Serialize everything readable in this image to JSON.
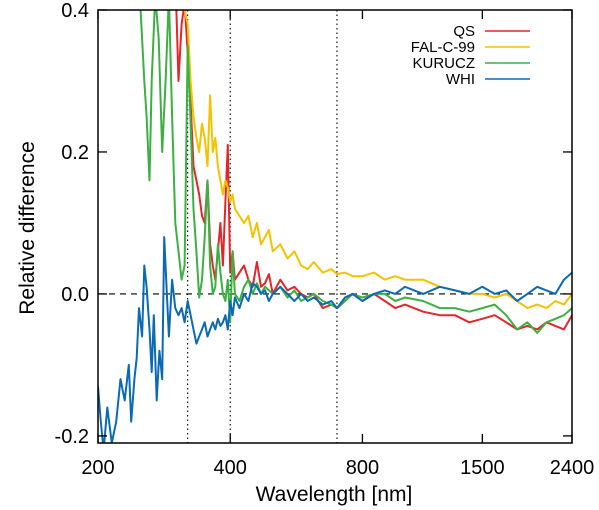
{
  "chart_data": {
    "type": "line",
    "xlabel": "Wavelength [nm]",
    "ylabel": "Relative difference",
    "x_scale": "log",
    "xlim": [
      200,
      2400
    ],
    "ylim": [
      -0.21,
      0.4
    ],
    "x_ticks": [
      {
        "value": 200,
        "label": "200"
      },
      {
        "value": 400,
        "label": "400"
      },
      {
        "value": 800,
        "label": "800"
      },
      {
        "value": 1500,
        "label": "1500"
      },
      {
        "value": 2400,
        "label": "2400"
      }
    ],
    "y_ticks": [
      {
        "value": 0.4,
        "label": "0.4"
      },
      {
        "value": 0.2,
        "label": "0.2"
      },
      {
        "value": 0.0,
        "label": "0.0"
      },
      {
        "value": -0.2,
        "label": "-0.2"
      }
    ],
    "reference_lines": {
      "horizontal_dashed": [
        0.0
      ],
      "vertical_dotted": [
        320,
        400,
        700
      ]
    },
    "legend_position": "top-right",
    "series": [
      {
        "name": "QS",
        "color": "#e3262a",
        "points": [
          [
            290,
            0.42
          ],
          [
            300,
            0.45
          ],
          [
            305,
            0.3
          ],
          [
            310,
            0.38
          ],
          [
            315,
            0.41
          ],
          [
            320,
            0.34
          ],
          [
            325,
            0.27
          ],
          [
            330,
            0.18
          ],
          [
            335,
            0.16
          ],
          [
            340,
            0.14
          ],
          [
            345,
            0.11
          ],
          [
            350,
            0.1
          ],
          [
            355,
            0.16
          ],
          [
            360,
            0.07
          ],
          [
            365,
            0.04
          ],
          [
            370,
            0.02
          ],
          [
            375,
            0.06
          ],
          [
            380,
            0.1
          ],
          [
            385,
            0.04
          ],
          [
            390,
            0.13
          ],
          [
            395,
            0.21
          ],
          [
            400,
            0.03
          ],
          [
            405,
            0.06
          ],
          [
            410,
            0.02
          ],
          [
            420,
            0.03
          ],
          [
            430,
            0.04
          ],
          [
            440,
            0.02
          ],
          [
            450,
            0.01
          ],
          [
            460,
            0.045
          ],
          [
            470,
            0.01
          ],
          [
            480,
            0.015
          ],
          [
            490,
            0.028
          ],
          [
            500,
            0.0
          ],
          [
            520,
            0.02
          ],
          [
            540,
            0.005
          ],
          [
            560,
            0.01
          ],
          [
            580,
            0.0
          ],
          [
            600,
            -0.005
          ],
          [
            620,
            0.0
          ],
          [
            650,
            -0.02
          ],
          [
            680,
            -0.015
          ],
          [
            700,
            -0.02
          ],
          [
            730,
            -0.01
          ],
          [
            760,
            0.0
          ],
          [
            800,
            -0.01
          ],
          [
            850,
            0.0
          ],
          [
            900,
            -0.01
          ],
          [
            950,
            -0.02
          ],
          [
            1000,
            -0.015
          ],
          [
            1100,
            -0.025
          ],
          [
            1200,
            -0.03
          ],
          [
            1300,
            -0.03
          ],
          [
            1400,
            -0.04
          ],
          [
            1500,
            -0.035
          ],
          [
            1600,
            -0.03
          ],
          [
            1700,
            -0.04
          ],
          [
            1800,
            -0.05
          ],
          [
            1900,
            -0.045
          ],
          [
            2000,
            -0.05
          ],
          [
            2100,
            -0.04
          ],
          [
            2200,
            -0.045
          ],
          [
            2300,
            -0.05
          ],
          [
            2400,
            -0.03
          ]
        ]
      },
      {
        "name": "FAL-C-99",
        "color": "#f5c200",
        "points": [
          [
            300,
            0.44
          ],
          [
            305,
            0.4
          ],
          [
            310,
            0.42
          ],
          [
            315,
            0.4
          ],
          [
            320,
            0.38
          ],
          [
            325,
            0.3
          ],
          [
            330,
            0.25
          ],
          [
            335,
            0.22
          ],
          [
            340,
            0.2
          ],
          [
            345,
            0.24
          ],
          [
            350,
            0.22
          ],
          [
            355,
            0.18
          ],
          [
            360,
            0.28
          ],
          [
            365,
            0.2
          ],
          [
            370,
            0.22
          ],
          [
            375,
            0.18
          ],
          [
            380,
            0.16
          ],
          [
            385,
            0.14
          ],
          [
            390,
            0.16
          ],
          [
            395,
            0.15
          ],
          [
            400,
            0.13
          ],
          [
            405,
            0.14
          ],
          [
            410,
            0.12
          ],
          [
            420,
            0.11
          ],
          [
            430,
            0.1
          ],
          [
            440,
            0.11
          ],
          [
            450,
            0.08
          ],
          [
            460,
            0.1
          ],
          [
            470,
            0.07
          ],
          [
            480,
            0.08
          ],
          [
            490,
            0.09
          ],
          [
            500,
            0.06
          ],
          [
            520,
            0.07
          ],
          [
            540,
            0.05
          ],
          [
            560,
            0.06
          ],
          [
            580,
            0.04
          ],
          [
            600,
            0.035
          ],
          [
            620,
            0.045
          ],
          [
            650,
            0.03
          ],
          [
            680,
            0.035
          ],
          [
            700,
            0.028
          ],
          [
            730,
            0.03
          ],
          [
            760,
            0.025
          ],
          [
            800,
            0.025
          ],
          [
            850,
            0.03
          ],
          [
            900,
            0.02
          ],
          [
            950,
            0.025
          ],
          [
            1000,
            0.02
          ],
          [
            1100,
            0.02
          ],
          [
            1200,
            0.01
          ],
          [
            1300,
            0.005
          ],
          [
            1400,
            0.0
          ],
          [
            1500,
            0.0
          ],
          [
            1600,
            -0.005
          ],
          [
            1700,
            0.0
          ],
          [
            1800,
            -0.01
          ],
          [
            1900,
            -0.02
          ],
          [
            2000,
            -0.015
          ],
          [
            2100,
            -0.02
          ],
          [
            2200,
            -0.01
          ],
          [
            2300,
            -0.015
          ],
          [
            2400,
            0.0
          ]
        ]
      },
      {
        "name": "KURUCZ",
        "color": "#3cb043",
        "points": [
          [
            250,
            0.4
          ],
          [
            255,
            0.3
          ],
          [
            258,
            0.25
          ],
          [
            262,
            0.16
          ],
          [
            265,
            0.3
          ],
          [
            270,
            0.42
          ],
          [
            275,
            0.36
          ],
          [
            280,
            0.2
          ],
          [
            285,
            0.3
          ],
          [
            290,
            0.42
          ],
          [
            295,
            0.25
          ],
          [
            300,
            0.1
          ],
          [
            305,
            0.06
          ],
          [
            310,
            0.02
          ],
          [
            315,
            0.04
          ],
          [
            320,
            0.35
          ],
          [
            325,
            0.24
          ],
          [
            330,
            0.12
          ],
          [
            335,
            0.06
          ],
          [
            340,
            -0.005
          ],
          [
            345,
            0.02
          ],
          [
            350,
            0.08
          ],
          [
            355,
            0.16
          ],
          [
            360,
            0.04
          ],
          [
            365,
            0.0
          ],
          [
            370,
            0.01
          ],
          [
            375,
            0.07
          ],
          [
            380,
            0.03
          ],
          [
            385,
            0.0
          ],
          [
            390,
            -0.01
          ],
          [
            395,
            0.02
          ],
          [
            400,
            -0.04
          ],
          [
            405,
            0.06
          ],
          [
            410,
            0.0
          ],
          [
            420,
            -0.01
          ],
          [
            430,
            0.01
          ],
          [
            440,
            0.02
          ],
          [
            450,
            0.0
          ],
          [
            460,
            0.015
          ],
          [
            470,
            0.0
          ],
          [
            480,
            0.01
          ],
          [
            500,
            0.0
          ],
          [
            520,
            0.01
          ],
          [
            540,
            -0.005
          ],
          [
            560,
            0.005
          ],
          [
            580,
            -0.01
          ],
          [
            600,
            -0.005
          ],
          [
            620,
            0.0
          ],
          [
            650,
            -0.01
          ],
          [
            680,
            -0.015
          ],
          [
            700,
            -0.02
          ],
          [
            730,
            -0.01
          ],
          [
            760,
            0.0
          ],
          [
            800,
            -0.005
          ],
          [
            850,
            0.0
          ],
          [
            900,
            0.0
          ],
          [
            950,
            -0.01
          ],
          [
            1000,
            -0.005
          ],
          [
            1100,
            -0.01
          ],
          [
            1200,
            -0.02
          ],
          [
            1300,
            -0.02
          ],
          [
            1400,
            -0.025
          ],
          [
            1500,
            -0.02
          ],
          [
            1600,
            -0.015
          ],
          [
            1700,
            -0.03
          ],
          [
            1800,
            -0.05
          ],
          [
            1900,
            -0.04
          ],
          [
            2000,
            -0.055
          ],
          [
            2100,
            -0.04
          ],
          [
            2200,
            -0.035
          ],
          [
            2300,
            -0.03
          ],
          [
            2400,
            -0.02
          ]
        ]
      },
      {
        "name": "WHI",
        "color": "#0a6ab4",
        "points": [
          [
            200,
            -0.13
          ],
          [
            203,
            -0.18
          ],
          [
            206,
            -0.22
          ],
          [
            210,
            -0.16
          ],
          [
            215,
            -0.21
          ],
          [
            220,
            -0.18
          ],
          [
            225,
            -0.12
          ],
          [
            230,
            -0.15
          ],
          [
            235,
            -0.1
          ],
          [
            238,
            -0.18
          ],
          [
            242,
            -0.12
          ],
          [
            245,
            -0.09
          ],
          [
            248,
            -0.02
          ],
          [
            252,
            -0.06
          ],
          [
            255,
            0.04
          ],
          [
            258,
            0.01
          ],
          [
            262,
            -0.05
          ],
          [
            265,
            -0.11
          ],
          [
            268,
            -0.03
          ],
          [
            272,
            -0.15
          ],
          [
            276,
            -0.08
          ],
          [
            280,
            -0.12
          ],
          [
            283,
            0.08
          ],
          [
            286,
            0.02
          ],
          [
            290,
            -0.06
          ],
          [
            295,
            0.02
          ],
          [
            300,
            -0.02
          ],
          [
            305,
            -0.03
          ],
          [
            310,
            -0.02
          ],
          [
            315,
            -0.04
          ],
          [
            320,
            -0.01
          ],
          [
            325,
            -0.03
          ],
          [
            330,
            -0.05
          ],
          [
            335,
            -0.07
          ],
          [
            340,
            -0.06
          ],
          [
            345,
            -0.05
          ],
          [
            350,
            -0.04
          ],
          [
            355,
            -0.06
          ],
          [
            360,
            -0.05
          ],
          [
            365,
            -0.04
          ],
          [
            370,
            -0.05
          ],
          [
            375,
            -0.035
          ],
          [
            380,
            -0.045
          ],
          [
            385,
            -0.04
          ],
          [
            390,
            -0.03
          ],
          [
            395,
            -0.05
          ],
          [
            400,
            -0.01
          ],
          [
            405,
            -0.03
          ],
          [
            410,
            -0.005
          ],
          [
            420,
            -0.02
          ],
          [
            430,
            0.0
          ],
          [
            440,
            -0.01
          ],
          [
            450,
            0.015
          ],
          [
            460,
            0.01
          ],
          [
            470,
            0.0
          ],
          [
            480,
            0.005
          ],
          [
            490,
            -0.01
          ],
          [
            500,
            0.0
          ],
          [
            520,
            0.01
          ],
          [
            540,
            0.0
          ],
          [
            560,
            -0.01
          ],
          [
            580,
            0.0
          ],
          [
            600,
            -0.01
          ],
          [
            620,
            -0.005
          ],
          [
            650,
            -0.015
          ],
          [
            680,
            -0.01
          ],
          [
            700,
            -0.02
          ],
          [
            730,
            -0.005
          ],
          [
            760,
            0.0
          ],
          [
            800,
            -0.01
          ],
          [
            850,
            0.0
          ],
          [
            900,
            0.005
          ],
          [
            950,
            0.0
          ],
          [
            1000,
            0.01
          ],
          [
            1100,
            0.0
          ],
          [
            1200,
            0.01
          ],
          [
            1300,
            0.005
          ],
          [
            1400,
            0.0
          ],
          [
            1500,
            0.01
          ],
          [
            1600,
            0.0
          ],
          [
            1700,
            0.005
          ],
          [
            1800,
            -0.01
          ],
          [
            1900,
            0.0
          ],
          [
            2000,
            0.01
          ],
          [
            2100,
            0.005
          ],
          [
            2200,
            0.0
          ],
          [
            2300,
            0.02
          ],
          [
            2400,
            0.03
          ]
        ]
      }
    ]
  }
}
